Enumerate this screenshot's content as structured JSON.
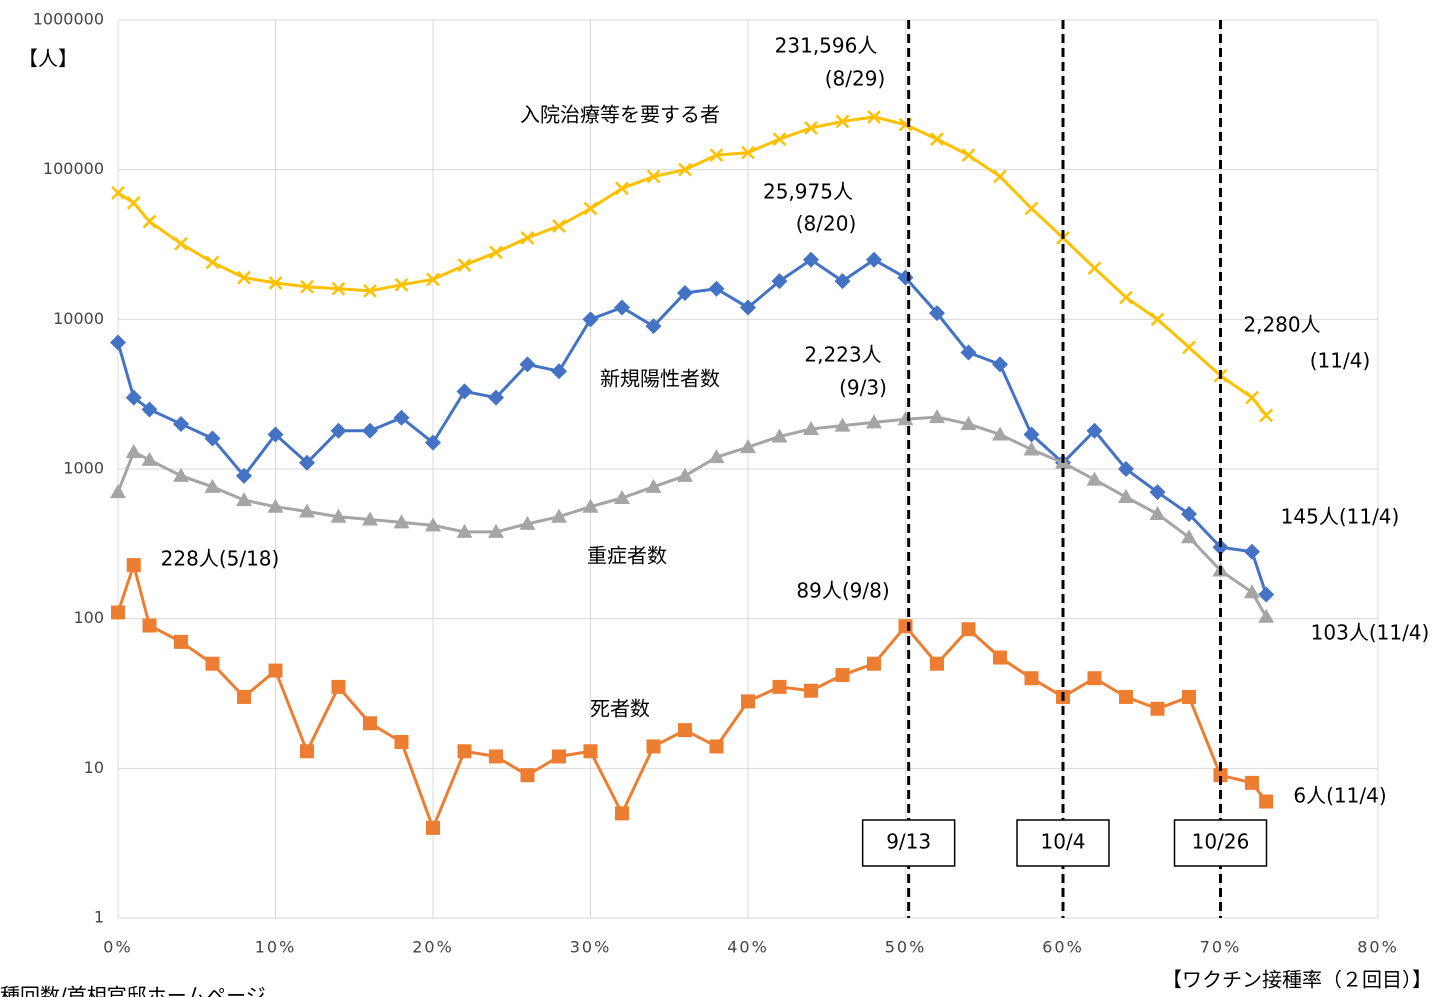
{
  "chart_data": {
    "type": "line",
    "y_label": "【人】",
    "x_label": "【ワクチン接種率（２回目）】",
    "source": "接種回数/首相官邸ホームページ",
    "log_scale": true,
    "grid": true,
    "ylim": [
      1,
      1000000
    ],
    "yticks": [
      1,
      10,
      100,
      1000,
      10000,
      100000,
      1000000
    ],
    "xlim": [
      0,
      80
    ],
    "xticks": [
      {
        "value": 0,
        "label": "0%"
      },
      {
        "value": 10,
        "label": "10%"
      },
      {
        "value": 20,
        "label": "20%"
      },
      {
        "value": 30,
        "label": "30%"
      },
      {
        "value": 40,
        "label": "40%"
      },
      {
        "value": 50,
        "label": "50%"
      },
      {
        "value": 60,
        "label": "60%"
      },
      {
        "value": 70,
        "label": "70%"
      },
      {
        "value": 80,
        "label": "80%"
      }
    ],
    "x": [
      0,
      1,
      2,
      4,
      6,
      8,
      10,
      12,
      14,
      16,
      18,
      20,
      22,
      24,
      26,
      28,
      30,
      32,
      34,
      36,
      38,
      40,
      42,
      44,
      46,
      48,
      50,
      52,
      54,
      56,
      58,
      60,
      62,
      64,
      66,
      68,
      70,
      72,
      72.9
    ],
    "series": [
      {
        "name": "入院治療等を要する者",
        "color": "#ffc000",
        "marker": "x",
        "values": [
          70000,
          60000,
          45000,
          32000,
          24000,
          19000,
          17500,
          16500,
          16000,
          15500,
          17000,
          18500,
          23000,
          28000,
          35000,
          42000,
          55000,
          75000,
          90000,
          100000,
          125000,
          130000,
          160000,
          190000,
          210000,
          225000,
          200000,
          160000,
          125000,
          90000,
          55000,
          35000,
          22000,
          14000,
          10000,
          6500,
          4200,
          3000,
          2280
        ]
      },
      {
        "name": "新規陽性者数",
        "color": "#4472c4",
        "marker": "diamond",
        "values": [
          7000,
          3000,
          2500,
          2000,
          1600,
          900,
          1700,
          1100,
          1800,
          1800,
          2200,
          1500,
          3300,
          3000,
          5000,
          4500,
          10000,
          12000,
          9000,
          15000,
          16000,
          12000,
          18000,
          25000,
          18000,
          25000,
          19000,
          11000,
          6000,
          5000,
          1700,
          1100,
          1800,
          1000,
          700,
          500,
          300,
          280,
          145
        ]
      },
      {
        "name": "重症者数",
        "color": "#a5a5a5",
        "marker": "triangle",
        "values": [
          700,
          1300,
          1150,
          900,
          760,
          620,
          560,
          520,
          480,
          460,
          440,
          420,
          380,
          380,
          430,
          480,
          560,
          640,
          760,
          900,
          1200,
          1400,
          1650,
          1850,
          1950,
          2050,
          2150,
          2223,
          2000,
          1700,
          1350,
          1100,
          850,
          650,
          500,
          350,
          210,
          150,
          103
        ]
      },
      {
        "name": "死者数",
        "color": "#ed7d31",
        "marker": "square",
        "values": [
          110,
          228,
          90,
          70,
          50,
          30,
          45,
          13,
          35,
          20,
          15,
          4,
          13,
          12,
          9,
          12,
          13,
          5,
          14,
          18,
          14,
          28,
          35,
          33,
          42,
          50,
          89,
          50,
          85,
          55,
          40,
          30,
          40,
          30,
          25,
          30,
          9,
          8,
          6
        ]
      }
    ],
    "vlines": [
      {
        "x": 50.2,
        "label": "9/13"
      },
      {
        "x": 60,
        "label": "10/4"
      },
      {
        "x": 70,
        "label": "10/26"
      }
    ],
    "annotations": [
      "231,596人",
      "(8/29)",
      "入院治療等を要する者",
      "25,975人",
      "(8/20)",
      "新規陽性者数",
      "2,223人",
      "(9/3)",
      "2,280人",
      "(11/4)",
      "145人(11/4)",
      "228人(5/18)",
      "重症者数",
      "89人(9/8)",
      "103人(11/4)",
      "死者数",
      "6人(11/4)"
    ]
  }
}
